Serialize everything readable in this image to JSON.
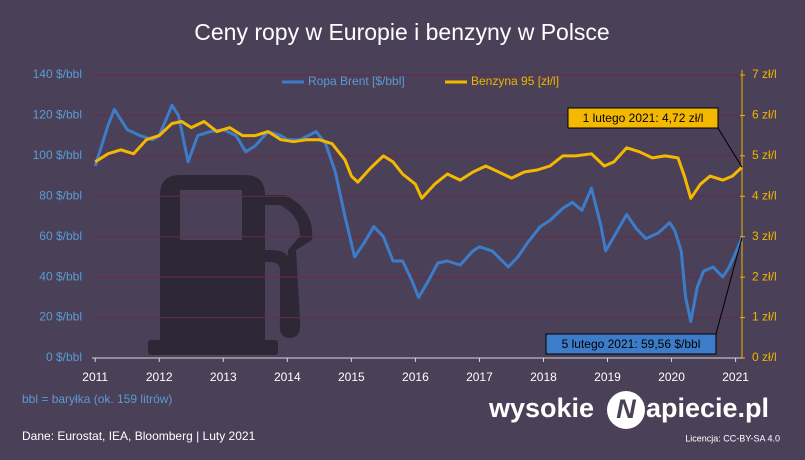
{
  "chart_data": {
    "type": "line",
    "title": "Ceny ropy w Europie i benzyny w Polsce",
    "xlim": [
      2010.95,
      2021.1
    ],
    "xticks": [
      2011,
      2012,
      2013,
      2014,
      2015,
      2016,
      2017,
      2018,
      2019,
      2020,
      2021
    ],
    "ylim": [
      0,
      140
    ],
    "yticks": [
      {
        "value": 0,
        "label": "0 $/bbl"
      },
      {
        "value": 20,
        "label": "20 $/bbl"
      },
      {
        "value": 40,
        "label": "40 $/bbl"
      },
      {
        "value": 60,
        "label": "60 $/bbl"
      },
      {
        "value": 80,
        "label": "80 $/bbl"
      },
      {
        "value": 100,
        "label": "100 $/bbl"
      },
      {
        "value": 120,
        "label": "120 $/bbl"
      },
      {
        "value": 140,
        "label": "140 $/bbl"
      }
    ],
    "y2lim": [
      0,
      7
    ],
    "y2ticks": [
      {
        "value": 0,
        "label": "0 zł/l"
      },
      {
        "value": 1,
        "label": "1 zł/l"
      },
      {
        "value": 2,
        "label": "2 zł/l"
      },
      {
        "value": 3,
        "label": "3 zł/l"
      },
      {
        "value": 4,
        "label": "4 zł/l"
      },
      {
        "value": 5,
        "label": "5 zł/l"
      },
      {
        "value": 6,
        "label": "6 zł/l"
      },
      {
        "value": 7,
        "label": "7 zł/l"
      }
    ],
    "grid": true,
    "series": [
      {
        "name": "Ropa Brent [$/bbl]",
        "color": "#3d7cc9",
        "x": [
          2011.0,
          2011.2,
          2011.3,
          2011.5,
          2011.7,
          2011.9,
          2012.0,
          2012.2,
          2012.3,
          2012.45,
          2012.6,
          2012.8,
          2013.0,
          2013.2,
          2013.35,
          2013.5,
          2013.7,
          2013.9,
          2014.0,
          2014.2,
          2014.45,
          2014.6,
          2014.75,
          2014.9,
          2015.05,
          2015.2,
          2015.35,
          2015.5,
          2015.65,
          2015.8,
          2015.95,
          2016.05,
          2016.2,
          2016.35,
          2016.5,
          2016.7,
          2016.9,
          2017.0,
          2017.2,
          2017.45,
          2017.6,
          2017.75,
          2017.95,
          2018.1,
          2018.3,
          2018.45,
          2018.6,
          2018.75,
          2018.9,
          2018.97,
          2019.1,
          2019.3,
          2019.45,
          2019.6,
          2019.8,
          2019.97,
          2020.05,
          2020.15,
          2020.22,
          2020.3,
          2020.4,
          2020.5,
          2020.65,
          2020.8,
          2020.9,
          2021.0,
          2021.1
        ],
        "values": [
          95,
          115,
          123,
          113,
          110,
          108,
          110,
          125,
          120,
          97,
          110,
          112,
          113,
          110,
          102,
          105,
          112,
          110,
          108,
          108,
          112,
          106,
          92,
          70,
          50,
          57,
          65,
          60,
          48,
          48,
          38,
          30,
          38,
          47,
          48,
          46,
          53,
          55,
          53,
          45,
          50,
          57,
          65,
          68,
          74,
          77,
          73,
          84,
          65,
          53,
          60,
          71,
          64,
          59,
          62,
          67,
          63,
          53,
          30,
          18,
          35,
          43,
          45,
          40,
          45,
          52,
          59.56
        ]
      },
      {
        "name": "Benzyna 95 [zł/l]",
        "color": "#f5b800",
        "axis": "y2",
        "x": [
          2011.0,
          2011.2,
          2011.4,
          2011.6,
          2011.8,
          2012.0,
          2012.2,
          2012.35,
          2012.5,
          2012.7,
          2012.9,
          2013.1,
          2013.3,
          2013.5,
          2013.7,
          2013.9,
          2014.1,
          2014.3,
          2014.5,
          2014.7,
          2014.9,
          2015.0,
          2015.1,
          2015.3,
          2015.5,
          2015.65,
          2015.8,
          2016.0,
          2016.1,
          2016.3,
          2016.5,
          2016.7,
          2016.9,
          2017.1,
          2017.3,
          2017.5,
          2017.7,
          2017.9,
          2018.1,
          2018.3,
          2018.5,
          2018.75,
          2018.95,
          2019.1,
          2019.3,
          2019.5,
          2019.7,
          2019.9,
          2020.1,
          2020.2,
          2020.3,
          2020.45,
          2020.6,
          2020.8,
          2020.95,
          2021.1
        ],
        "values": [
          4.85,
          5.05,
          5.15,
          5.05,
          5.4,
          5.5,
          5.8,
          5.85,
          5.7,
          5.85,
          5.6,
          5.7,
          5.5,
          5.5,
          5.6,
          5.4,
          5.35,
          5.4,
          5.4,
          5.3,
          4.9,
          4.5,
          4.35,
          4.7,
          5.0,
          4.85,
          4.55,
          4.3,
          3.95,
          4.3,
          4.55,
          4.4,
          4.6,
          4.75,
          4.6,
          4.45,
          4.6,
          4.65,
          4.75,
          5.0,
          5.0,
          5.05,
          4.75,
          4.85,
          5.2,
          5.1,
          4.95,
          5.0,
          4.95,
          4.5,
          3.95,
          4.3,
          4.5,
          4.4,
          4.5,
          4.72
        ]
      }
    ],
    "annotations": [
      {
        "text": "1 lutego 2021: 4,72 zł/l"
      },
      {
        "text": "5 lutego 2021: 59,56 $/bbl"
      }
    ],
    "note": "bbl = baryłka (ok. 159 litrów)",
    "source": "Dane: Eurostat, IEA, Bloomberg  |  Luty 2021",
    "logo": [
      "wysokie",
      "N",
      "apiecie.pl"
    ],
    "license": "Licencja: CC-BY-SA 4.0"
  }
}
